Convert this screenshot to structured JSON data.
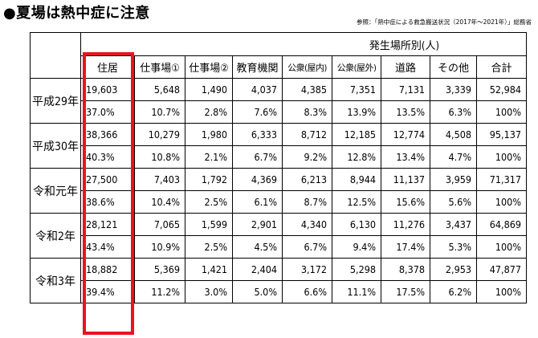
{
  "title": "●夏場は熱中症に注意",
  "source": "参照：「熱中症による救急搬送状況（2017年〜2021年）」総務省",
  "table": {
    "group_header": "発生場所別(人)",
    "columns": [
      "住居",
      "仕事場①",
      "仕事場②",
      "教育機関",
      "公衆(屋内)",
      "公衆(屋外)",
      "道路",
      "その他",
      "合計"
    ],
    "rows": [
      {
        "year": "平成29年",
        "counts": [
          "19,603",
          "5,648",
          "1,490",
          "4,037",
          "4,385",
          "7,351",
          "7,131",
          "3,339",
          "52,984"
        ],
        "percents": [
          "37.0%",
          "10.7%",
          "2.8%",
          "7.6%",
          "8.3%",
          "13.9%",
          "13.5%",
          "6.3%",
          "100%"
        ]
      },
      {
        "year": "平成30年",
        "counts": [
          "38,366",
          "10,279",
          "1,980",
          "6,333",
          "8,712",
          "12,185",
          "12,774",
          "4,508",
          "95,137"
        ],
        "percents": [
          "40.3%",
          "10.8%",
          "2.1%",
          "6.7%",
          "9.2%",
          "12.8%",
          "13.4%",
          "4.7%",
          "100%"
        ]
      },
      {
        "year": "令和元年",
        "counts": [
          "27,500",
          "7,403",
          "1,792",
          "4,369",
          "6,213",
          "8,944",
          "11,137",
          "3,959",
          "71,317"
        ],
        "percents": [
          "38.6%",
          "10.4%",
          "2.5%",
          "6.1%",
          "8.7%",
          "12.5%",
          "15.6%",
          "5.6%",
          "100%"
        ]
      },
      {
        "year": "令和2年",
        "counts": [
          "28,121",
          "7,065",
          "1,599",
          "2,901",
          "4,340",
          "6,130",
          "11,276",
          "3,437",
          "64,869"
        ],
        "percents": [
          "43.4%",
          "10.9%",
          "2.5%",
          "4.5%",
          "6.7%",
          "9.4%",
          "17.4%",
          "5.3%",
          "100%"
        ]
      },
      {
        "year": "令和3年",
        "counts": [
          "18,882",
          "5,369",
          "1,421",
          "2,404",
          "3,172",
          "5,298",
          "8,378",
          "2,953",
          "47,877"
        ],
        "percents": [
          "39.4%",
          "11.2%",
          "3.0%",
          "5.0%",
          "6.6%",
          "11.1%",
          "17.5%",
          "6.2%",
          "100%"
        ]
      }
    ]
  },
  "highlight": {
    "column": "住居",
    "color": "#e8141e"
  }
}
